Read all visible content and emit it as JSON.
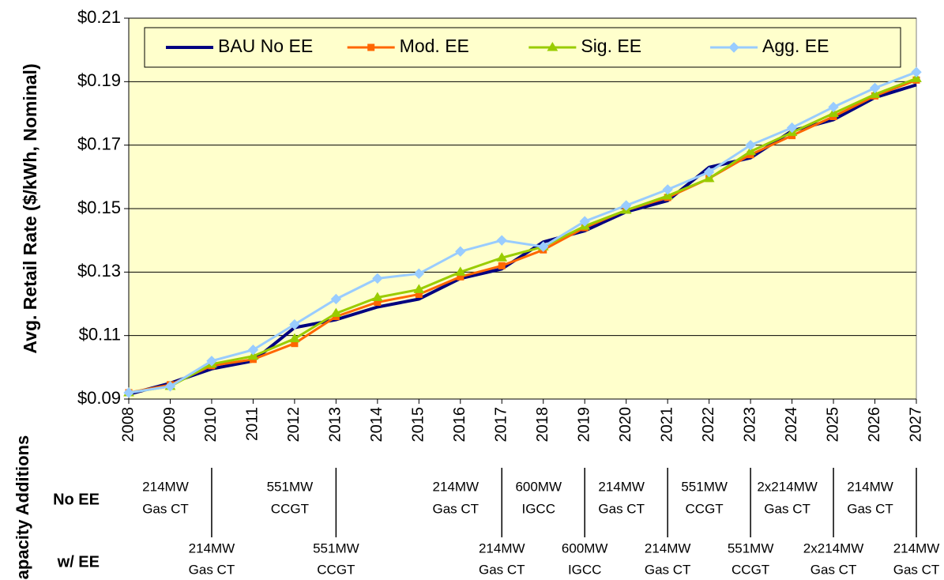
{
  "chart_data": {
    "type": "line",
    "y_label": "Avg. Retail Rate ($/kWh, Nominal)",
    "categories": [
      "2008",
      "2009",
      "2010",
      "2011",
      "2012",
      "2013",
      "2014",
      "2015",
      "2016",
      "2017",
      "2018",
      "2019",
      "2020",
      "2021",
      "2022",
      "2023",
      "2024",
      "2025",
      "2026",
      "2027"
    ],
    "series": [
      {
        "name": "BAU No EE",
        "color": "#000080",
        "marker": "none",
        "values": [
          0.0915,
          0.095,
          0.0995,
          0.102,
          0.1125,
          0.115,
          0.119,
          0.1215,
          0.128,
          0.131,
          0.1395,
          0.143,
          0.149,
          0.1525,
          0.163,
          0.166,
          0.1745,
          0.178,
          0.185,
          0.189
        ]
      },
      {
        "name": "Mod. EE",
        "color": "#ff6600",
        "marker": "square",
        "values": [
          0.092,
          0.0945,
          0.1005,
          0.1025,
          0.1075,
          0.116,
          0.1205,
          0.123,
          0.1285,
          0.132,
          0.137,
          0.144,
          0.1495,
          0.1535,
          0.1595,
          0.167,
          0.173,
          0.179,
          0.1855,
          0.1905
        ]
      },
      {
        "name": "Sig. EE",
        "color": "#99cc00",
        "marker": "triangle",
        "values": [
          0.092,
          0.094,
          0.101,
          0.1035,
          0.109,
          0.117,
          0.122,
          0.1245,
          0.13,
          0.1345,
          0.138,
          0.1445,
          0.1495,
          0.154,
          0.1595,
          0.168,
          0.174,
          0.18,
          0.186,
          0.191
        ]
      },
      {
        "name": "Agg. EE",
        "color": "#99ccff",
        "marker": "diamond",
        "values": [
          0.092,
          0.094,
          0.102,
          0.1055,
          0.1135,
          0.1215,
          0.128,
          0.1295,
          0.1365,
          0.14,
          0.138,
          0.146,
          0.151,
          0.156,
          0.1615,
          0.17,
          0.1755,
          0.182,
          0.188,
          0.193
        ]
      }
    ],
    "ylim": [
      0.09,
      0.21
    ],
    "yticks": [
      {
        "value": 0.09,
        "label": "$0.09"
      },
      {
        "value": 0.11,
        "label": "$0.11"
      },
      {
        "value": 0.13,
        "label": "$0.13"
      },
      {
        "value": 0.15,
        "label": "$0.15"
      },
      {
        "value": 0.17,
        "label": "$0.17"
      },
      {
        "value": 0.19,
        "label": "$0.19"
      },
      {
        "value": 0.21,
        "label": "$0.21"
      }
    ],
    "grid": true,
    "legend": "top",
    "plot_background": "#ffffcc"
  },
  "capacity_additions": {
    "title": "Capacity Additions",
    "rows": [
      {
        "label": "No EE",
        "items": [
          null,
          [
            "214MW",
            "Gas CT"
          ],
          null,
          null,
          [
            "551MW",
            "CCGT"
          ],
          null,
          null,
          null,
          [
            "214MW",
            "Gas CT"
          ],
          null,
          [
            "600MW",
            "IGCC"
          ],
          null,
          [
            "214MW",
            "Gas CT"
          ],
          null,
          [
            "551MW",
            "CCGT"
          ],
          null,
          [
            "2x214MW",
            "Gas CT"
          ],
          null,
          [
            "214MW",
            "Gas CT"
          ],
          null
        ]
      },
      {
        "label": "w/ EE",
        "items": [
          null,
          null,
          [
            "214MW",
            "Gas CT"
          ],
          null,
          null,
          [
            "551MW",
            "CCGT"
          ],
          null,
          null,
          null,
          [
            "214MW",
            "Gas CT"
          ],
          null,
          [
            "600MW",
            "IGCC"
          ],
          null,
          [
            "214MW",
            "Gas CT"
          ],
          null,
          [
            "551MW",
            "CCGT"
          ],
          null,
          [
            "2x214MW",
            "Gas CT"
          ],
          null,
          [
            "214MW",
            "Gas CT"
          ]
        ]
      }
    ]
  }
}
